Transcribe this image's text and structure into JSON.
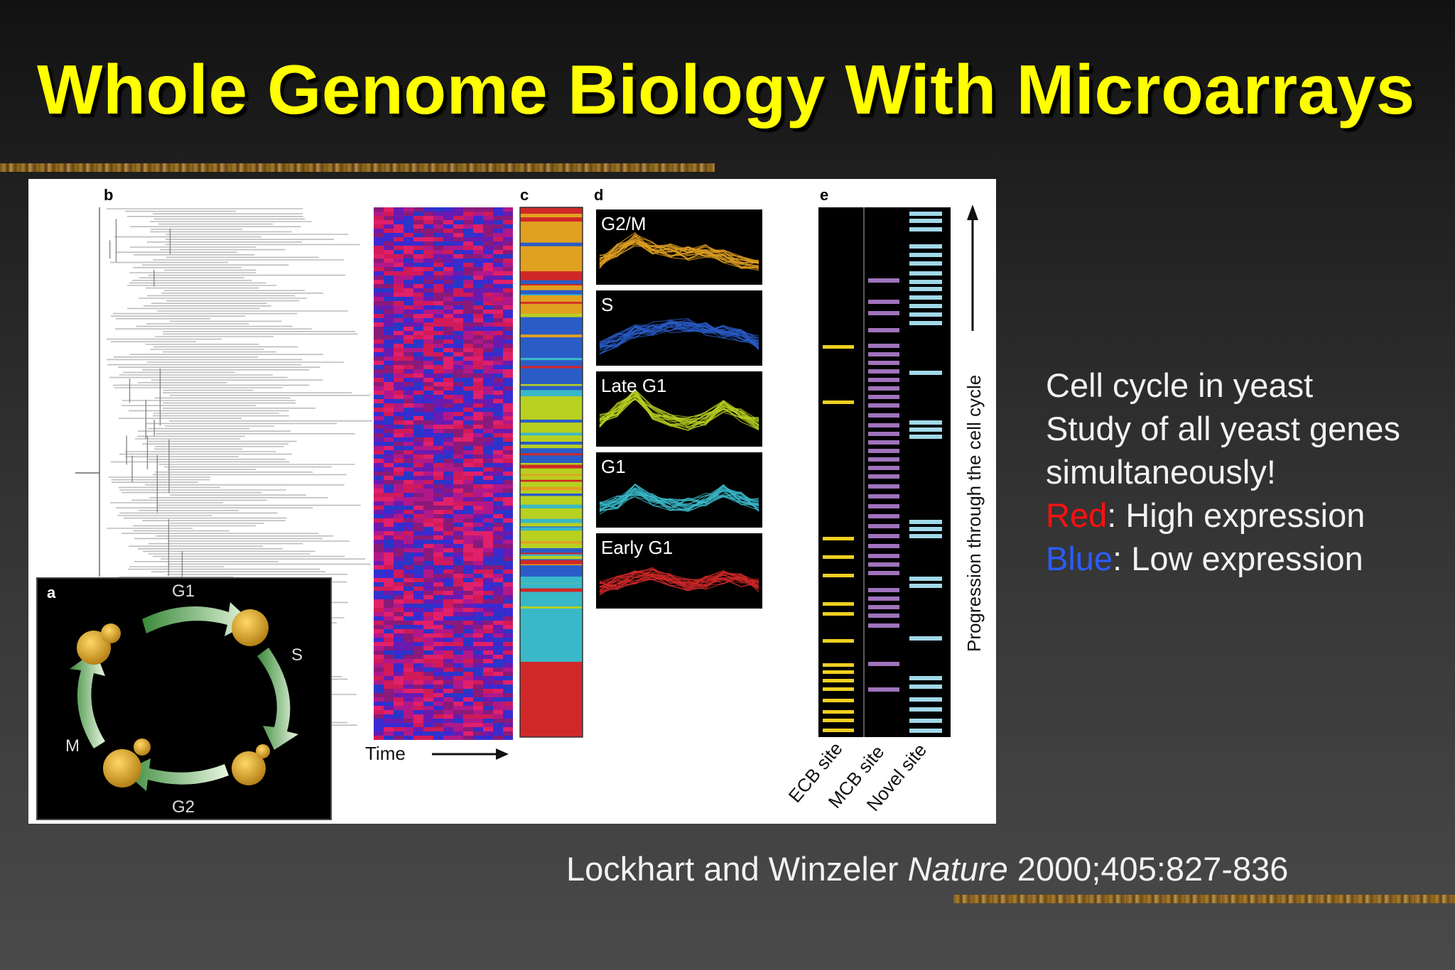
{
  "slide": {
    "title": "Whole Genome Biology With Microarrays"
  },
  "figure": {
    "panel_letters": {
      "a": "a",
      "b": "b",
      "c": "c",
      "d": "d",
      "e": "e"
    },
    "time_label": "Time",
    "panel_d_labels": [
      "G2/M",
      "S",
      "Late G1",
      "G1",
      "Early G1"
    ],
    "panel_d_colors": [
      "#e0a020",
      "#2a5cc8",
      "#b8d020",
      "#39b8c8",
      "#d02828"
    ],
    "panel_e_columns": [
      "ECB site",
      "MCB site",
      "Novel site"
    ],
    "panel_e_colors": [
      "#f0d020",
      "#b080d0",
      "#a0d8e8"
    ],
    "progression_label": "Progression through the cell cycle",
    "cycle_phases": [
      "G1",
      "S",
      "G2",
      "M"
    ]
  },
  "notes": {
    "line1": "Cell cycle in yeast",
    "line2": "Study of all yeast genes",
    "line3": "simultaneously!",
    "red_word": "Red",
    "red_rest": ": High expression",
    "blue_word": "Blue",
    "blue_rest": ": Low expression"
  },
  "citation": {
    "authors": "Lockhart and Winzeler ",
    "journal": "Nature",
    "ref": " 2000;405:827-836"
  }
}
